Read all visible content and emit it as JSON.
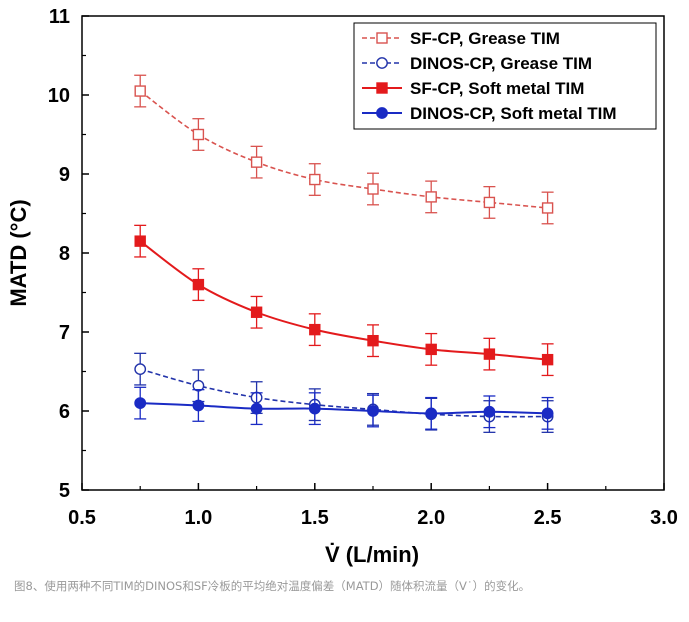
{
  "chart_data": {
    "type": "line",
    "xlabel": "V̇ (L/min)",
    "ylabel": "MATD (°C)",
    "xlim": [
      0.5,
      3.0
    ],
    "ylim": [
      5,
      11
    ],
    "xticks": [
      "0.5",
      "1.0",
      "1.5",
      "2.0",
      "2.5",
      "3.0"
    ],
    "yticks": [
      "5",
      "6",
      "7",
      "8",
      "9",
      "10",
      "11"
    ],
    "grid": false,
    "legend_position": "top-right",
    "x": [
      0.75,
      1.0,
      1.25,
      1.5,
      1.75,
      2.0,
      2.25,
      2.5
    ],
    "series": [
      {
        "name": "SF-CP, Grease TIM",
        "color": "#d9534f",
        "line": "dashed",
        "marker": "open-square",
        "values": [
          10.05,
          9.5,
          9.15,
          8.93,
          8.81,
          8.71,
          8.64,
          8.57
        ],
        "errors": [
          0.2,
          0.2,
          0.2,
          0.2,
          0.2,
          0.2,
          0.2,
          0.2
        ]
      },
      {
        "name": "DINOS-CP, Grease TIM",
        "color": "#2233aa",
        "line": "dashed",
        "marker": "open-circle",
        "values": [
          6.53,
          6.32,
          6.17,
          6.08,
          6.02,
          5.96,
          5.93,
          5.93
        ],
        "errors": [
          0.2,
          0.2,
          0.2,
          0.2,
          0.2,
          0.2,
          0.2,
          0.2
        ]
      },
      {
        "name": "SF-CP, Soft metal TIM",
        "color": "#e31a1c",
        "line": "solid",
        "marker": "filled-square",
        "values": [
          8.15,
          7.6,
          7.25,
          7.03,
          6.89,
          6.78,
          6.72,
          6.65
        ],
        "errors": [
          0.2,
          0.2,
          0.2,
          0.2,
          0.2,
          0.2,
          0.2,
          0.2
        ]
      },
      {
        "name": "DINOS-CP, Soft metal TIM",
        "color": "#1a2bc4",
        "line": "solid",
        "marker": "filled-circle",
        "values": [
          6.1,
          6.07,
          6.03,
          6.03,
          6.0,
          5.97,
          5.99,
          5.97
        ],
        "errors": [
          0.2,
          0.2,
          0.2,
          0.2,
          0.2,
          0.2,
          0.2,
          0.2
        ]
      }
    ]
  },
  "caption": "图8、使用两种不同TIM的DINOS和SF冷板的平均绝对温度偏差（MATD）随体积流量（V˙）的变化。"
}
